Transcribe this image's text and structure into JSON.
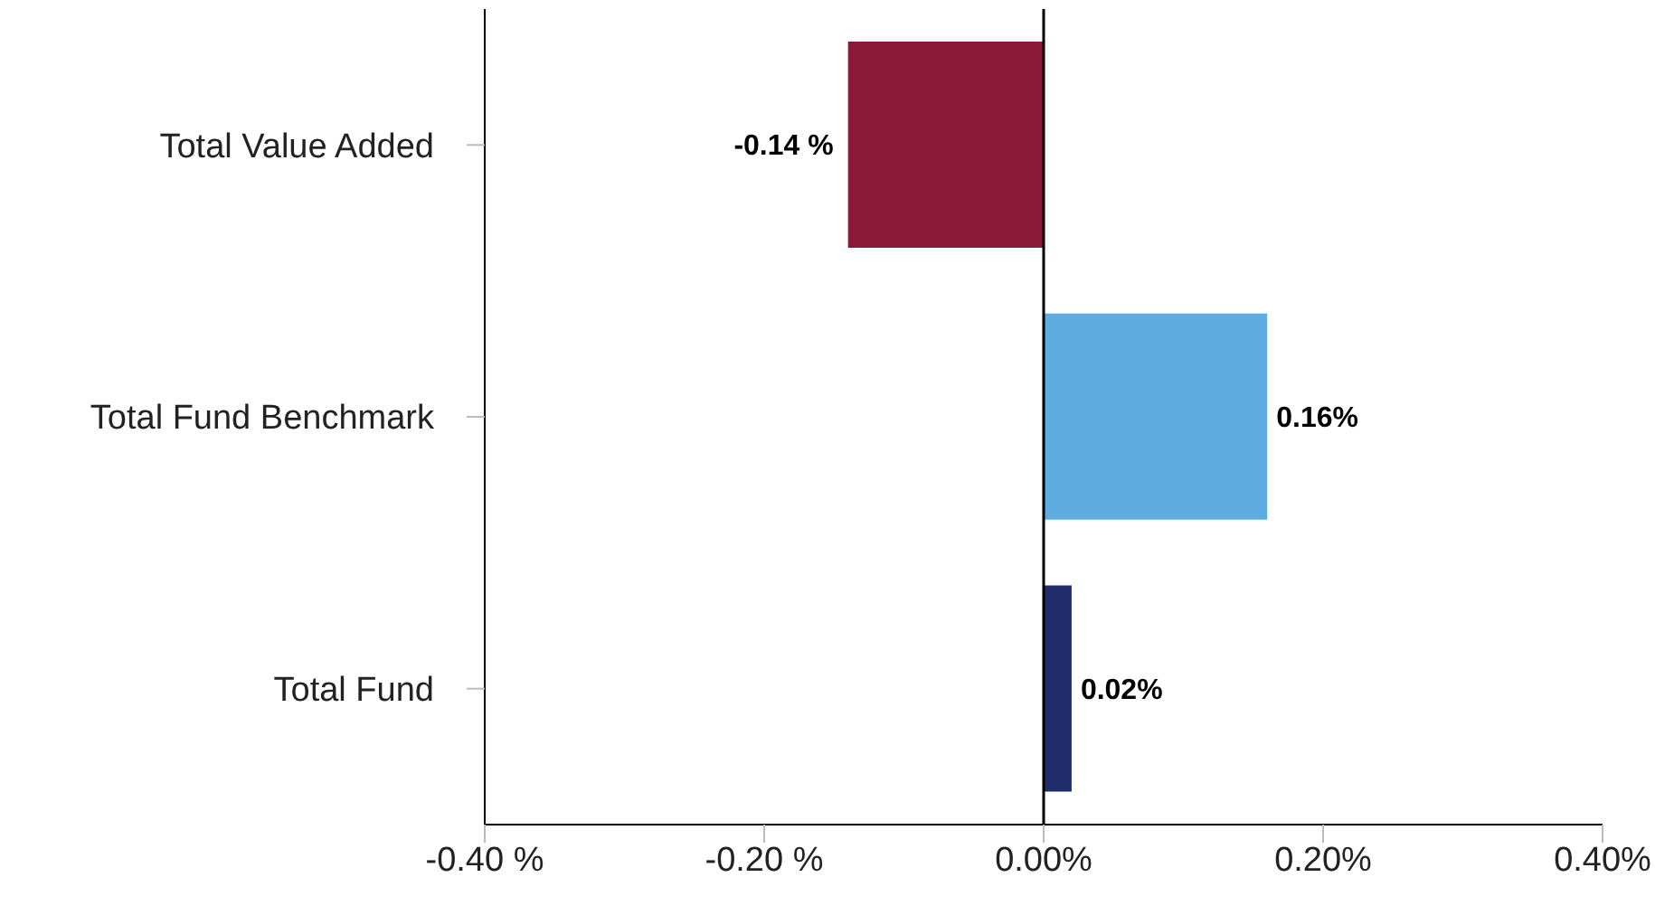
{
  "chart_data": {
    "type": "bar",
    "orientation": "horizontal",
    "categories": [
      "Total Value Added",
      "Total Fund Benchmark",
      "Total Fund"
    ],
    "values": [
      -0.14,
      0.16,
      0.02
    ],
    "colors": [
      "#8b1a3a",
      "#5dade2",
      "#1f2d6b"
    ],
    "value_labels": [
      "-0.14 %",
      "0.16%",
      "0.02%"
    ],
    "xlim": [
      -0.4,
      0.4
    ],
    "xticks": [
      {
        "value": -0.4,
        "label": "-0.40 %"
      },
      {
        "value": -0.2,
        "label": "-0.20 %"
      },
      {
        "value": 0,
        "label": "0.00%"
      },
      {
        "value": 0.2,
        "label": "0.20%"
      },
      {
        "value": 0.4,
        "label": "0.40%"
      }
    ],
    "ref_lines": [
      {
        "axis": "x",
        "value": 0,
        "color": "#000000"
      }
    ],
    "grid": false,
    "legend": false
  }
}
